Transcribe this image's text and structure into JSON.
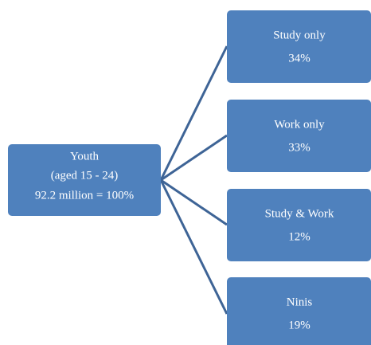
{
  "root": {
    "lines": [
      "Youth",
      "(aged 15 - 24)",
      "92.2 million = 100%"
    ]
  },
  "nodes": [
    {
      "label": "Study only",
      "share": "34%"
    },
    {
      "label": "Work only",
      "share": "33%"
    },
    {
      "label": "Study & Work",
      "share": "12%"
    },
    {
      "label": "Ninis",
      "share": "19%"
    }
  ]
}
